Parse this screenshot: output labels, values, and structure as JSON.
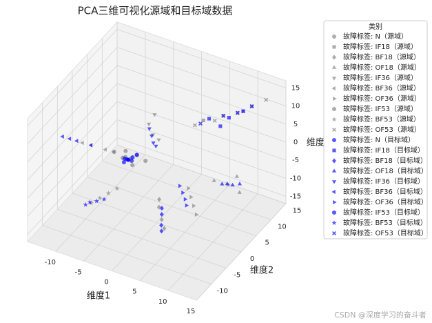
{
  "chart_data": {
    "type": "scatter3d",
    "title": "PCA三维可视化源域和目标域数据",
    "xlabel": "维度1",
    "ylabel": "维度2",
    "zlabel": "维度3",
    "legend_title": "类别",
    "legend": "upper right",
    "grid": true,
    "xlim": [
      -15,
      15
    ],
    "ylim": [
      -15,
      15
    ],
    "zlim": [
      -17,
      17
    ],
    "xticks": [
      -10,
      -5,
      0,
      5,
      10,
      15
    ],
    "yticks": [
      -10,
      -5,
      0,
      5,
      10,
      15
    ],
    "zticks": [
      -15,
      -10,
      -5,
      0,
      5,
      10,
      15
    ],
    "series": [
      {
        "name": "故障标签: N（源域）",
        "color": "#808080",
        "marker": "o",
        "x": [
          -4.5,
          -3.8,
          -3,
          -5
        ],
        "y": [
          -2,
          -1.5,
          -2.5,
          -1
        ],
        "z": [
          0.5,
          0,
          -0.5,
          1
        ]
      },
      {
        "name": "故障标签: IF18（源域）",
        "color": "#808080",
        "marker": "s",
        "x": [
          3,
          6,
          8,
          10
        ],
        "y": [
          10,
          11,
          12,
          13
        ],
        "z": [
          4,
          6,
          7,
          9
        ]
      },
      {
        "name": "故障标签: BF18（源域）",
        "color": "#808080",
        "marker": "D",
        "x": [
          2,
          3,
          1.5,
          4
        ],
        "y": [
          -3,
          -4,
          -2,
          -5
        ],
        "z": [
          -9,
          -11,
          -8,
          -12
        ]
      },
      {
        "name": "故障标签: OF18（源域）",
        "color": "#808080",
        "marker": "^",
        "x": [
          7,
          9,
          10,
          11
        ],
        "y": [
          6,
          7,
          8,
          7
        ],
        "z": [
          -7,
          -8,
          -6,
          -9
        ]
      },
      {
        "name": "故障标签: IF36（源域）",
        "color": "#808080",
        "marker": "v",
        "x": [
          -3,
          -2,
          -1.5,
          -2.5
        ],
        "y": [
          3,
          2.5,
          3.5,
          4
        ],
        "z": [
          6,
          4,
          2,
          8
        ]
      },
      {
        "name": "故障标签: BF36（源域）",
        "color": "#808080",
        "marker": "<",
        "x": [
          -9,
          -7,
          -10,
          -6
        ],
        "y": [
          -5,
          -4,
          -6,
          -3
        ],
        "z": [
          4,
          3,
          5,
          2
        ]
      },
      {
        "name": "故障标签: OF36（源域）",
        "color": "#808080",
        "marker": ">",
        "x": [
          5,
          6,
          4,
          7
        ],
        "y": [
          2,
          1,
          3,
          0
        ],
        "z": [
          -9,
          -10,
          -8,
          -11
        ]
      },
      {
        "name": "故障标签: IF53（源域）",
        "color": "#808080",
        "marker": "h",
        "x": [
          -3,
          -6,
          -2,
          -5
        ],
        "y": [
          -1,
          -3,
          0,
          -2
        ],
        "z": [
          1,
          2,
          -1,
          0
        ]
      },
      {
        "name": "故障标签: BF53（源域）",
        "color": "#808080",
        "marker": "*",
        "x": [
          -8,
          -7,
          -9,
          -6
        ],
        "y": [
          -4,
          -3,
          -5,
          -2
        ],
        "z": [
          -11,
          -10,
          -12,
          -9
        ]
      },
      {
        "name": "故障标签: OF53（源域）",
        "color": "#808080",
        "marker": "X",
        "x": [
          2,
          5,
          9,
          12
        ],
        "y": [
          9,
          10,
          12,
          14
        ],
        "z": [
          3,
          5,
          8,
          11
        ]
      },
      {
        "name": "故障标签: N（目标域）",
        "color": "#0000ff",
        "marker": "o",
        "x": [
          -4,
          -4.5,
          -3.5,
          -4.2
        ],
        "y": [
          -2,
          -2.3,
          -1.8,
          -2.1
        ],
        "z": [
          0,
          0.3,
          -0.2,
          0.1
        ]
      },
      {
        "name": "故障标签: IF18（目标域）",
        "color": "#0000ff",
        "marker": "s",
        "x": [
          4,
          7,
          9,
          6
        ],
        "y": [
          10,
          11,
          12,
          10
        ],
        "z": [
          5,
          6,
          8,
          4
        ]
      },
      {
        "name": "故障标签: BF18（目标域）",
        "color": "#0000ff",
        "marker": "D",
        "x": [
          2.8,
          3.2,
          2.5,
          3.5
        ],
        "y": [
          -3.6,
          -4.5,
          -3,
          -5
        ],
        "z": [
          -10,
          -12,
          -9,
          -13
        ]
      },
      {
        "name": "故障标签: OF18（目标域）",
        "color": "#0000ff",
        "marker": "^",
        "x": [
          8.7,
          9.5,
          10.5,
          8
        ],
        "y": [
          7.2,
          7.5,
          8,
          6.8
        ],
        "z": [
          -8,
          -8.2,
          -7.8,
          -8.1
        ]
      },
      {
        "name": "故障标签: IF36（目标域）",
        "color": "#0000ff",
        "marker": "v",
        "x": [
          -2.5,
          -2.3,
          -2.8,
          -2
        ],
        "y": [
          3,
          3.2,
          2.8,
          3.5
        ],
        "z": [
          3,
          1,
          5,
          0
        ]
      },
      {
        "name": "故障标签: BF36（目标域）",
        "color": "#0000ff",
        "marker": "<",
        "x": [
          -11,
          -13,
          -9,
          -12
        ],
        "y": [
          -6,
          -7,
          -5,
          -6.5
        ],
        "z": [
          5,
          6,
          4,
          5.5
        ]
      },
      {
        "name": "故障标签: OF36（目标域）",
        "color": "#0000ff",
        "marker": ">",
        "x": [
          3.8,
          4.5,
          3,
          5
        ],
        "y": [
          1.5,
          1,
          2,
          0.5
        ],
        "z": [
          -8,
          -9,
          -7,
          -10
        ]
      },
      {
        "name": "故障标签: IF53（目标域）",
        "color": "#0000ff",
        "marker": "h",
        "x": [
          -4,
          -3.5,
          -4.5,
          -3
        ],
        "y": [
          -2,
          -1.5,
          -2.5,
          -1
        ],
        "z": [
          0,
          0.5,
          -0.5,
          1
        ]
      },
      {
        "name": "故障标签: BF53（目标域）",
        "color": "#0000ff",
        "marker": "*",
        "x": [
          -8.5,
          -7.5,
          -9.5,
          -10
        ],
        "y": [
          -4.1,
          -3.5,
          -4.5,
          -5
        ],
        "z": [
          -12,
          -11.5,
          -12.5,
          -13
        ]
      },
      {
        "name": "故障标签: OF53（目标域）",
        "color": "#0000ff",
        "marker": "X",
        "x": [
          3,
          6,
          8,
          10
        ],
        "y": [
          9,
          11,
          12,
          13
        ],
        "z": [
          4,
          6,
          7,
          9
        ]
      }
    ],
    "watermark": "CSDN @深度学习的奋斗者"
  }
}
